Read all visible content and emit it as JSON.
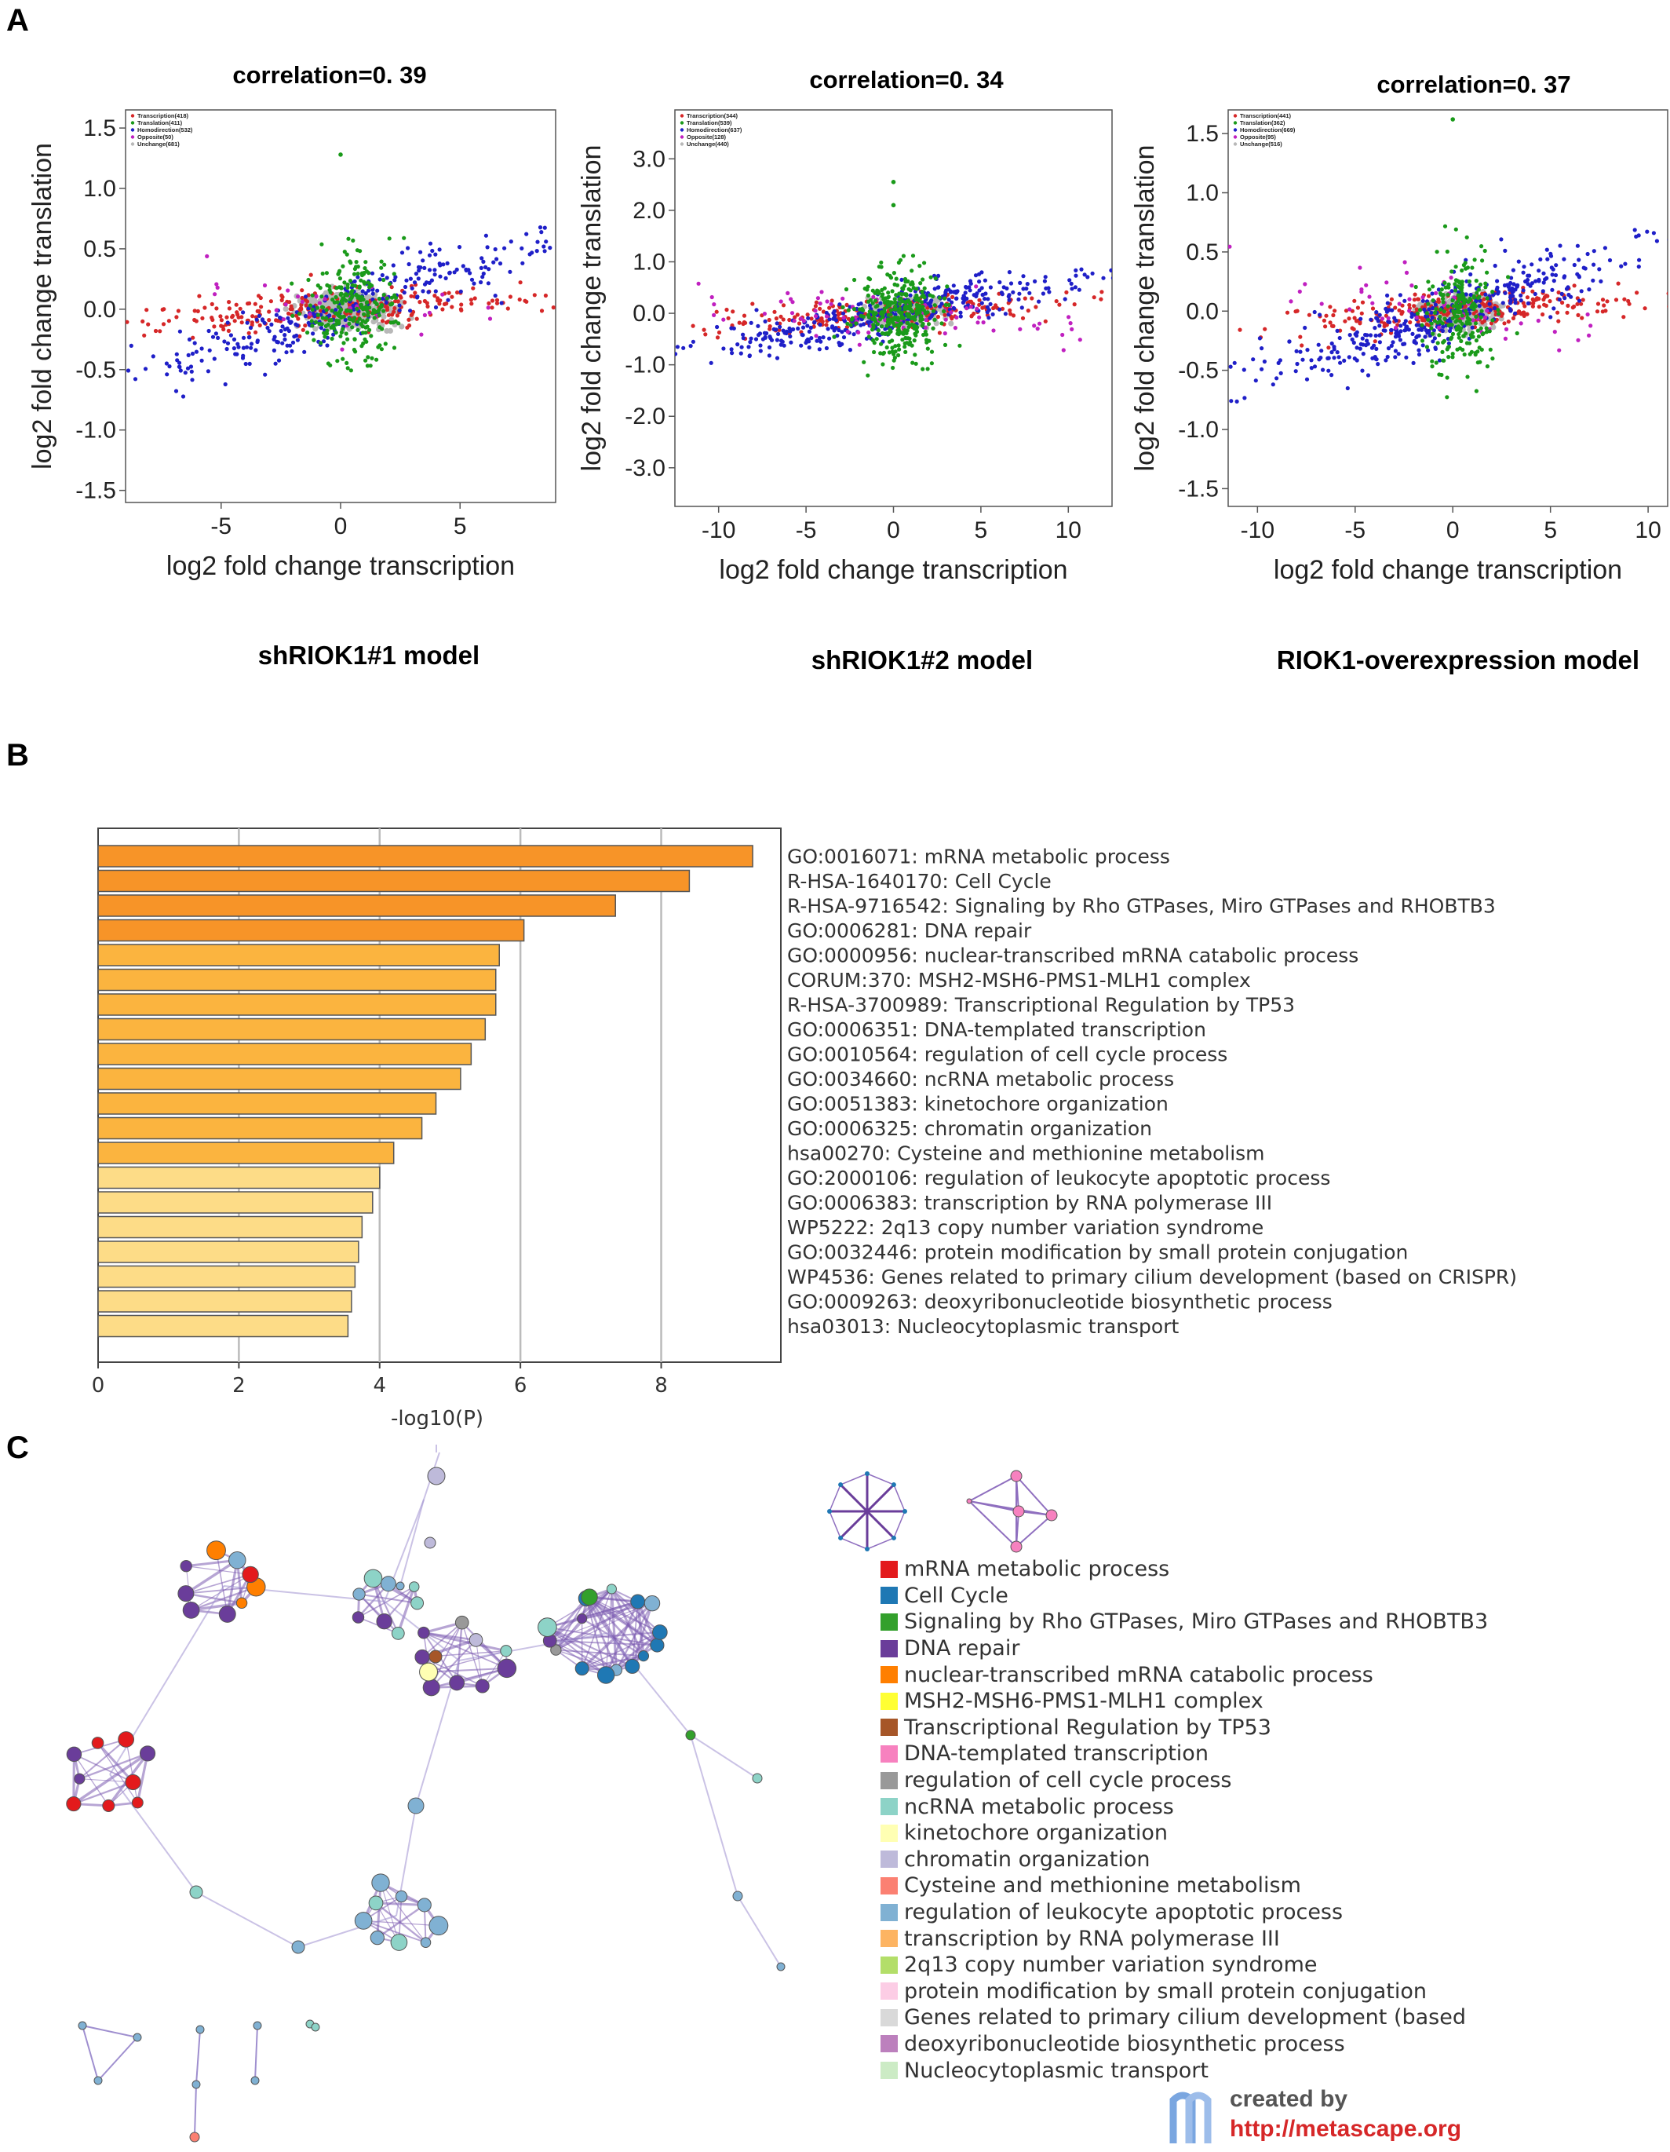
{
  "panels": {
    "a": "A",
    "b": "B",
    "c": "C"
  },
  "scatter_panels": [
    {
      "title": "correlation=0. 39",
      "model": "shRIOK1#1 model"
    },
    {
      "title": "correlation=0. 34",
      "model": "shRIOK1#2 model"
    },
    {
      "title": "correlation=0. 37",
      "model": "RIOK1-overexpression model"
    }
  ],
  "credit": {
    "line1": "created by",
    "line2": "http://metascape.org"
  },
  "chart_data": [
    {
      "type": "scatter",
      "title": "correlation=0. 39",
      "subtitle": "shRIOK1#1 model",
      "xlabel": "log2 fold change transcription",
      "ylabel": "log2 fold change translation",
      "xlim": [
        -9,
        9
      ],
      "ylim": [
        -1.6,
        1.65
      ],
      "xticks": [
        -5,
        0,
        5
      ],
      "yticks": [
        1.5,
        1.0,
        0.5,
        0.0,
        -0.5,
        -1.0,
        -1.5
      ],
      "xtick_labels": [
        "-5",
        "0",
        "5"
      ],
      "ytick_labels": [
        "1.5",
        "1.0",
        "0.5",
        "0.0",
        "-0.5",
        "-1.0",
        "-1.5"
      ],
      "legend": [
        "Transcription(418)",
        "Translation(411)",
        "Homodirection(532)",
        "Opposite(50)",
        "Unchange(681)"
      ],
      "series": [
        {
          "name": "Transcription(418)",
          "color": "#d62728",
          "n": 418,
          "slope": 0.012,
          "xsd": 4.0,
          "ysd": 0.09
        },
        {
          "name": "Translation(411)",
          "color": "#1a9a1a",
          "n": 411,
          "slope": 0.0,
          "xsd": 0.9,
          "ysd": 0.22
        },
        {
          "name": "Homodirection(532)",
          "color": "#1f1fc8",
          "n": 532,
          "slope": 0.055,
          "xsd": 4.5,
          "ysd": 0.12
        },
        {
          "name": "Opposite(50)",
          "color": "#c020c0",
          "n": 50,
          "slope": -0.03,
          "xsd": 3.5,
          "ysd": 0.12
        },
        {
          "name": "Unchange(681)",
          "color": "#b8b8b8",
          "n": 681,
          "slope": 0.0,
          "xsd": 0.9,
          "ysd": 0.07
        }
      ],
      "outliers": [
        [
          0,
          1.28
        ]
      ]
    },
    {
      "type": "scatter",
      "title": "correlation=0. 34",
      "subtitle": "shRIOK1#2 model",
      "xlabel": "log2 fold change transcription",
      "ylabel": "log2 fold change translation",
      "xlim": [
        -12.5,
        12.5
      ],
      "ylim": [
        -3.75,
        3.95
      ],
      "xticks": [
        -10,
        -5,
        0,
        5,
        10
      ],
      "yticks": [
        3.0,
        2.0,
        1.0,
        0.0,
        -1.0,
        -2.0,
        -3.0
      ],
      "xtick_labels": [
        "-10",
        "-5",
        "0",
        "5",
        "10"
      ],
      "ytick_labels": [
        "3.0",
        "2.0",
        "1.0",
        "0.0",
        "-1.0",
        "-2.0",
        "-3.0"
      ],
      "legend": [
        "Transcription(344)",
        "Translation(539)",
        "Homodirection(637)",
        "Opposite(128)",
        "Unchange(440)"
      ],
      "series": [
        {
          "name": "Transcription(344)",
          "color": "#d62728",
          "n": 344,
          "slope": 0.02,
          "xsd": 5.0,
          "ysd": 0.16
        },
        {
          "name": "Translation(539)",
          "color": "#1a9a1a",
          "n": 539,
          "slope": 0.0,
          "xsd": 1.2,
          "ysd": 0.45
        },
        {
          "name": "Homodirection(637)",
          "color": "#1f1fc8",
          "n": 637,
          "slope": 0.06,
          "xsd": 6.0,
          "ysd": 0.2
        },
        {
          "name": "Opposite(128)",
          "color": "#c020c0",
          "n": 128,
          "slope": -0.02,
          "xsd": 4.5,
          "ysd": 0.2
        },
        {
          "name": "Unchange(440)",
          "color": "#b8b8b8",
          "n": 440,
          "slope": 0.0,
          "xsd": 1.0,
          "ysd": 0.12
        }
      ],
      "outliers": [
        [
          0,
          2.55
        ],
        [
          0,
          2.1
        ]
      ]
    },
    {
      "type": "scatter",
      "title": "correlation=0. 37",
      "subtitle": "RIOK1-overexpression model",
      "xlabel": "log2 fold change transcription",
      "ylabel": "log2 fold change translation",
      "xlim": [
        -11.5,
        11
      ],
      "ylim": [
        -1.65,
        1.7
      ],
      "xticks": [
        -10,
        -5,
        0,
        5,
        10
      ],
      "yticks": [
        1.5,
        1.0,
        0.5,
        0.0,
        -0.5,
        -1.0,
        -1.5
      ],
      "xtick_labels": [
        "-10",
        "-5",
        "0",
        "5",
        "10"
      ],
      "ytick_labels": [
        "1.5",
        "1.0",
        "0.5",
        "0.0",
        "-0.5",
        "-1.0",
        "-1.5"
      ],
      "legend": [
        "Transcription(441)",
        "Translation(362)",
        "Homodirection(669)",
        "Opposite(95)",
        "Unchange(516)"
      ],
      "series": [
        {
          "name": "Transcription(441)",
          "color": "#d62728",
          "n": 441,
          "slope": 0.012,
          "xsd": 4.5,
          "ysd": 0.09
        },
        {
          "name": "Translation(362)",
          "color": "#1a9a1a",
          "n": 362,
          "slope": 0.0,
          "xsd": 0.9,
          "ysd": 0.25
        },
        {
          "name": "Homodirection(669)",
          "color": "#1f1fc8",
          "n": 669,
          "slope": 0.045,
          "xsd": 5.5,
          "ysd": 0.13
        },
        {
          "name": "Opposite(95)",
          "color": "#c020c0",
          "n": 95,
          "slope": -0.03,
          "xsd": 4.5,
          "ysd": 0.13
        },
        {
          "name": "Unchange(516)",
          "color": "#b8b8b8",
          "n": 516,
          "slope": 0.0,
          "xsd": 0.9,
          "ysd": 0.07
        }
      ],
      "outliers": [
        [
          0,
          1.62
        ]
      ]
    },
    {
      "type": "bar",
      "orientation": "horizontal",
      "xlabel": "-log10(P)",
      "xlim": [
        0,
        9.7
      ],
      "xticks": [
        0,
        2,
        4,
        6,
        8
      ],
      "grid": true,
      "categories": [
        "GO:0016071: mRNA metabolic process",
        "R-HSA-1640170: Cell Cycle",
        "R-HSA-9716542: Signaling by Rho GTPases, Miro GTPases and RHOBTB3",
        "GO:0006281: DNA repair",
        "GO:0000956: nuclear-transcribed mRNA catabolic process",
        "CORUM:370: MSH2-MSH6-PMS1-MLH1 complex",
        "R-HSA-3700989: Transcriptional Regulation by TP53",
        "GO:0006351: DNA-templated transcription",
        "GO:0010564: regulation of cell cycle process",
        "GO:0034660: ncRNA metabolic process",
        "GO:0051383: kinetochore organization",
        "GO:0006325: chromatin organization",
        "hsa00270: Cysteine and methionine metabolism",
        "GO:2000106: regulation of leukocyte apoptotic process",
        "GO:0006383: transcription by RNA polymerase III",
        "WP5222: 2q13 copy number variation syndrome",
        "GO:0032446: protein modification by small protein conjugation",
        "WP4536: Genes related to primary cilium development (based on CRISPR)",
        "GO:0009263: deoxyribonucleotide biosynthetic process",
        "hsa03013: Nucleocytoplasmic transport"
      ],
      "values": [
        9.3,
        8.4,
        7.35,
        6.05,
        5.7,
        5.65,
        5.65,
        5.5,
        5.3,
        5.15,
        4.8,
        4.6,
        4.2,
        4.0,
        3.9,
        3.75,
        3.7,
        3.65,
        3.6,
        3.55
      ],
      "colors": [
        "#f79428",
        "#f79428",
        "#f79428",
        "#f79428",
        "#fbb43f",
        "#fbb43f",
        "#fbb43f",
        "#fbb43f",
        "#fbb43f",
        "#fbb43f",
        "#fbb43f",
        "#fbb43f",
        "#fbb43f",
        "#fddc87",
        "#fddc87",
        "#fddc87",
        "#fddc87",
        "#fddc87",
        "#fddc87",
        "#fddc87"
      ]
    },
    {
      "type": "network",
      "legend": [
        {
          "label": "mRNA metabolic process",
          "color": "#e31a1c"
        },
        {
          "label": "Cell Cycle",
          "color": "#1f78b4"
        },
        {
          "label": "Signaling by Rho GTPases, Miro GTPases and RHOBTB3",
          "color": "#33a02c"
        },
        {
          "label": "DNA repair",
          "color": "#6a3d9a"
        },
        {
          "label": "nuclear-transcribed mRNA catabolic process",
          "color": "#ff7f00"
        },
        {
          "label": "MSH2-MSH6-PMS1-MLH1 complex",
          "color": "#ffff33"
        },
        {
          "label": "Transcriptional Regulation by TP53",
          "color": "#a65628"
        },
        {
          "label": "DNA-templated transcription",
          "color": "#f781bf"
        },
        {
          "label": "regulation of cell cycle process",
          "color": "#999999"
        },
        {
          "label": "ncRNA metabolic process",
          "color": "#8dd3c7"
        },
        {
          "label": "kinetochore organization",
          "color": "#ffffb3"
        },
        {
          "label": "chromatin organization",
          "color": "#bebada"
        },
        {
          "label": "Cysteine and methionine metabolism",
          "color": "#fb8072"
        },
        {
          "label": "regulation of leukocyte apoptotic process",
          "color": "#80b1d3"
        },
        {
          "label": "transcription by RNA polymerase III",
          "color": "#fdb462"
        },
        {
          "label": "2q13 copy number variation syndrome",
          "color": "#b3de69"
        },
        {
          "label": "protein modification by small protein conjugation",
          "color": "#fccde5"
        },
        {
          "label": "Genes related to primary cilium development (based",
          "color": "#d9d9d9"
        },
        {
          "label": "deoxyribonucleotide biosynthetic process",
          "color": "#bc80bd"
        },
        {
          "label": "Nucleocytoplasmic transport",
          "color": "#ccebc5"
        }
      ]
    }
  ]
}
